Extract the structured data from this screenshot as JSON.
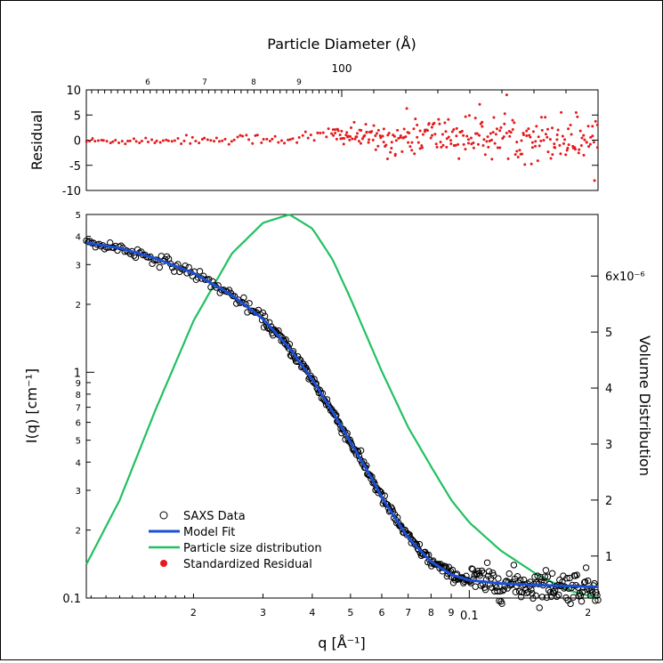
{
  "chart_data": [
    {
      "type": "scatter",
      "panel": "residual",
      "top_axis_label": "Particle Diameter (Å)",
      "top_axis_major_labels": [
        "100"
      ],
      "top_axis_minor_labels": [
        "6",
        "7",
        "8",
        "9"
      ],
      "ylabel": "Residual",
      "ylim": [
        -10,
        10
      ],
      "y_ticks": [
        "10",
        "5",
        "0",
        "-5",
        "-10"
      ],
      "series": [
        {
          "name": "Standardized Residual",
          "color": "#e41a1c",
          "marker": "dot",
          "amplitude_profile": [
            [
              0.0107,
              0.4
            ],
            [
              0.03,
              0.6
            ],
            [
              0.04,
              1.0
            ],
            [
              0.055,
              1.2
            ],
            [
              0.07,
              2.4
            ],
            [
              0.1,
              2.3
            ],
            [
              0.15,
              2.6
            ],
            [
              0.21,
              2.8
            ]
          ],
          "offset_profile": [
            [
              0.0107,
              -0.2
            ],
            [
              0.04,
              0.4
            ],
            [
              0.045,
              1.2
            ],
            [
              0.055,
              0.6
            ],
            [
              0.065,
              0.0
            ],
            [
              0.07,
              1.0
            ],
            [
              0.21,
              0.5
            ]
          ]
        }
      ]
    },
    {
      "type": "line",
      "panel": "main",
      "xlabel": "q [Å⁻¹]",
      "xscale": "log",
      "xlim": [
        0.0107,
        0.212
      ],
      "x_major_labels": [
        "0.1"
      ],
      "x_minor_labels": [
        "2",
        "3",
        "4",
        "5",
        "6",
        "7",
        "8",
        "9",
        "2"
      ],
      "ylabel": "I(q) [cm⁻¹]",
      "yscale": "log",
      "ylim": [
        0.1,
        5.0
      ],
      "y_major_labels": [
        "1",
        "0.1"
      ],
      "y_minor_labels": [
        "5",
        "4",
        "3",
        "2",
        "9",
        "8",
        "7",
        "6",
        "5",
        "4",
        "3",
        "2"
      ],
      "y2label": "Volume Distribution",
      "y2lim": [
        2.5e-07,
        7.1e-06
      ],
      "y2_ticks": [
        "6x10⁻⁶",
        "5",
        "4",
        "3",
        "2",
        "1"
      ],
      "legend_position": "bottom-left",
      "legend": [
        "SAXS Data",
        "Model Fit",
        "Particle size distribution",
        "Standardized Residual"
      ],
      "series": [
        {
          "name": "SAXS Data",
          "type": "scatter",
          "marker": "open-circle",
          "color": "#000000",
          "generator": "model_fit_with_noise"
        },
        {
          "name": "Model Fit",
          "type": "line",
          "color": "#1a4fd6",
          "x": [
            0.0107,
            0.013,
            0.016,
            0.02,
            0.025,
            0.03,
            0.035,
            0.04,
            0.045,
            0.05,
            0.055,
            0.06,
            0.065,
            0.07,
            0.08,
            0.09,
            0.1,
            0.12,
            0.15,
            0.18,
            0.212
          ],
          "y": [
            3.75,
            3.55,
            3.2,
            2.75,
            2.2,
            1.72,
            1.28,
            0.93,
            0.67,
            0.49,
            0.37,
            0.28,
            0.225,
            0.185,
            0.145,
            0.127,
            0.12,
            0.116,
            0.114,
            0.113,
            0.112
          ]
        },
        {
          "name": "Particle size distribution",
          "type": "line",
          "color": "#22c061",
          "axis": "right",
          "x": [
            0.0107,
            0.013,
            0.016,
            0.02,
            0.025,
            0.03,
            0.035,
            0.04,
            0.045,
            0.05,
            0.06,
            0.07,
            0.08,
            0.09,
            0.1,
            0.12,
            0.15,
            0.18,
            0.212
          ],
          "y": [
            8.5e-07,
            2e-06,
            3.6e-06,
            5.2e-06,
            6.4e-06,
            6.95e-06,
            7.1e-06,
            6.85e-06,
            6.3e-06,
            5.6e-06,
            4.3e-06,
            3.3e-06,
            2.6e-06,
            2e-06,
            1.6e-06,
            1.1e-06,
            6.5e-07,
            3.8e-07,
            2.5e-07
          ]
        },
        {
          "name": "Standardized Residual",
          "type": "scatter",
          "marker": "dot",
          "color": "#e41a1c",
          "panel": "residual"
        }
      ]
    }
  ]
}
